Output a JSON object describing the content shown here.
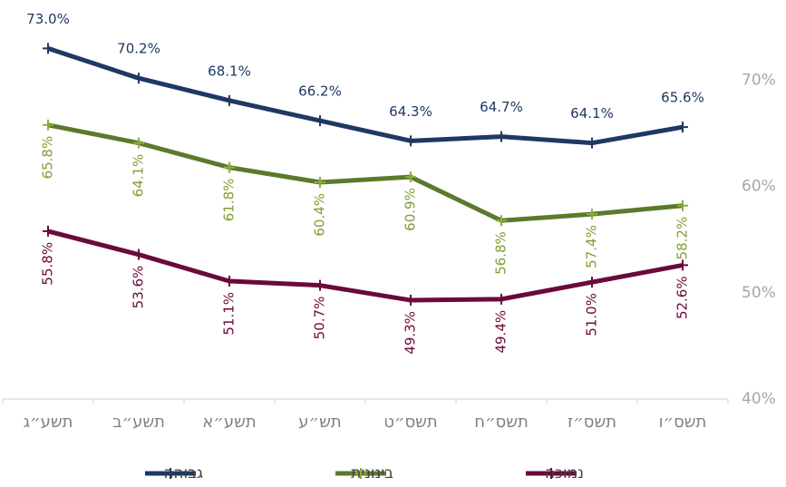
{
  "chart_data": {
    "type": "line",
    "categories": [
      "תשע״ג",
      "תשע״ב",
      "תשע״א",
      "תש״ע",
      "תשס״ט",
      "תשס״ח",
      "תשס״ז",
      "תשס״ו"
    ],
    "series": [
      {
        "name": "גבוהה",
        "color": "#1f3864",
        "values": [
          73.0,
          70.2,
          68.1,
          66.2,
          64.3,
          64.7,
          64.1,
          65.6
        ],
        "value_labels": [
          "73.0%",
          "70.2%",
          "68.1%",
          "66.2%",
          "64.3%",
          "64.7%",
          "64.1%",
          "65.6%"
        ]
      },
      {
        "name": "בינונית",
        "color": "#5b7a2c",
        "values": [
          65.8,
          64.1,
          61.8,
          60.4,
          60.9,
          56.8,
          57.4,
          58.2
        ],
        "value_labels": [
          "65.8%",
          "64.1%",
          "61.8%",
          "60.4%",
          "60.9%",
          "56.8%",
          "57.4%",
          "58.2%"
        ]
      },
      {
        "name": "נמוכה",
        "color": "#6b0a3a",
        "values": [
          55.8,
          53.6,
          51.1,
          50.7,
          49.3,
          49.4,
          51.0,
          52.6
        ],
        "value_labels": [
          "55.8%",
          "53.6%",
          "51.1%",
          "50.7%",
          "49.3%",
          "49.4%",
          "51.0%",
          "52.6%"
        ]
      }
    ],
    "ylim": [
      40,
      75
    ],
    "yticks": [
      {
        "value": 40,
        "label": "40%"
      },
      {
        "value": 50,
        "label": "50%"
      },
      {
        "value": 60,
        "label": "60%"
      },
      {
        "value": 70,
        "label": "70%"
      }
    ],
    "grid": false,
    "legend": "bottom"
  }
}
